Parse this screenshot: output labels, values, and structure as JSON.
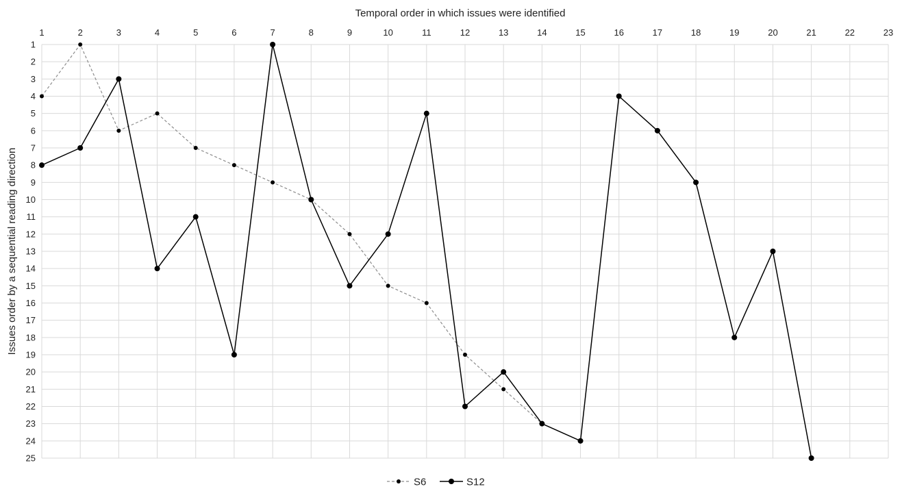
{
  "chart_data": {
    "type": "line",
    "title": "",
    "xlabel": "Temporal order in which issues were identified",
    "ylabel": "Issues order by a sequential reading direction",
    "x_ticks": [
      1,
      2,
      3,
      4,
      5,
      6,
      7,
      8,
      9,
      10,
      11,
      12,
      13,
      14,
      15,
      16,
      17,
      18,
      19,
      20,
      21,
      22,
      23
    ],
    "y_ticks": [
      1,
      2,
      3,
      4,
      5,
      6,
      7,
      8,
      9,
      10,
      11,
      12,
      13,
      14,
      15,
      16,
      17,
      18,
      19,
      20,
      21,
      22,
      23,
      24,
      25
    ],
    "xlim": [
      1,
      23
    ],
    "ylim": [
      1,
      25
    ],
    "y_inverted": true,
    "x_axis_position": "top",
    "grid": true,
    "legend_position": "bottom-center",
    "series": [
      {
        "name": "S6",
        "style": "dashed",
        "color": "#8c8c8c",
        "marker_color": "#000000",
        "x": [
          1,
          2,
          3,
          4,
          5,
          6,
          7,
          8,
          9,
          10,
          11,
          12,
          13,
          14
        ],
        "y": [
          4,
          1,
          6,
          5,
          7,
          8,
          9,
          10,
          12,
          15,
          16,
          19,
          21,
          23
        ]
      },
      {
        "name": "S12",
        "style": "solid",
        "color": "#000000",
        "marker_color": "#000000",
        "x": [
          1,
          2,
          3,
          4,
          5,
          6,
          7,
          8,
          9,
          10,
          11,
          12,
          13,
          14,
          15,
          16,
          17,
          18,
          19,
          20,
          21
        ],
        "y": [
          8,
          7,
          3,
          14,
          11,
          19,
          1,
          10,
          15,
          12,
          5,
          22,
          20,
          23,
          24,
          4,
          6,
          9,
          18,
          13,
          25
        ]
      }
    ]
  }
}
